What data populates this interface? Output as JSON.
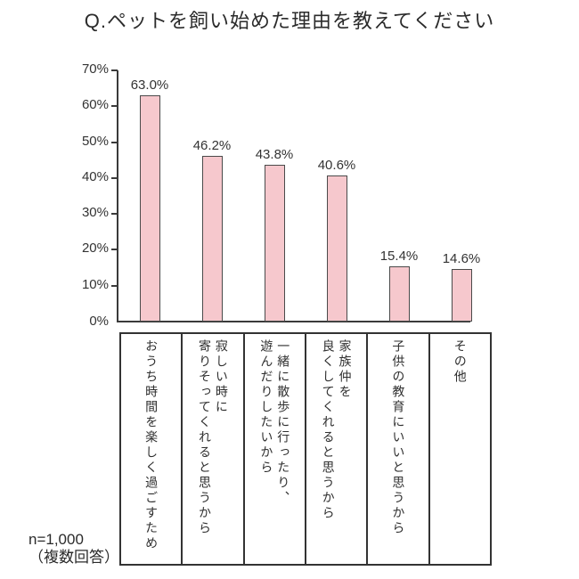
{
  "title": "Q.ペットを飼い始めた理由を教えてください",
  "note": {
    "line1": "n=1,000",
    "line2": "（複数回答）"
  },
  "chart_data": {
    "type": "bar",
    "title": "Q.ペットを飼い始めた理由を教えてください",
    "categories": [
      "おうち時間を楽しく過ごすため",
      "寂しい時に\n寄りそってくれると思うから",
      "一緒に散歩に行ったり、\n遊んだりしたいから",
      "家族仲を\n良くしてくれると思うから",
      "子供の教育にいいと思うから",
      "その他"
    ],
    "values": [
      63.0,
      46.2,
      43.8,
      40.6,
      15.4,
      14.6
    ],
    "value_labels": [
      "63.0%",
      "46.2%",
      "43.8%",
      "40.6%",
      "15.4%",
      "14.6%"
    ],
    "xlabel": "",
    "ylabel": "",
    "ylim": [
      0,
      70
    ],
    "ytick_labels": [
      "70%",
      "60%",
      "50%",
      "40%",
      "30%",
      "20%",
      "10%",
      "0%"
    ],
    "grid": false,
    "legend": "none",
    "sample_note": "n=1,000（複数回答）",
    "bar_fill_color": "#f6c8cd",
    "bar_border_color": "#4a4a4a",
    "axis_color": "#3a3a3a"
  }
}
